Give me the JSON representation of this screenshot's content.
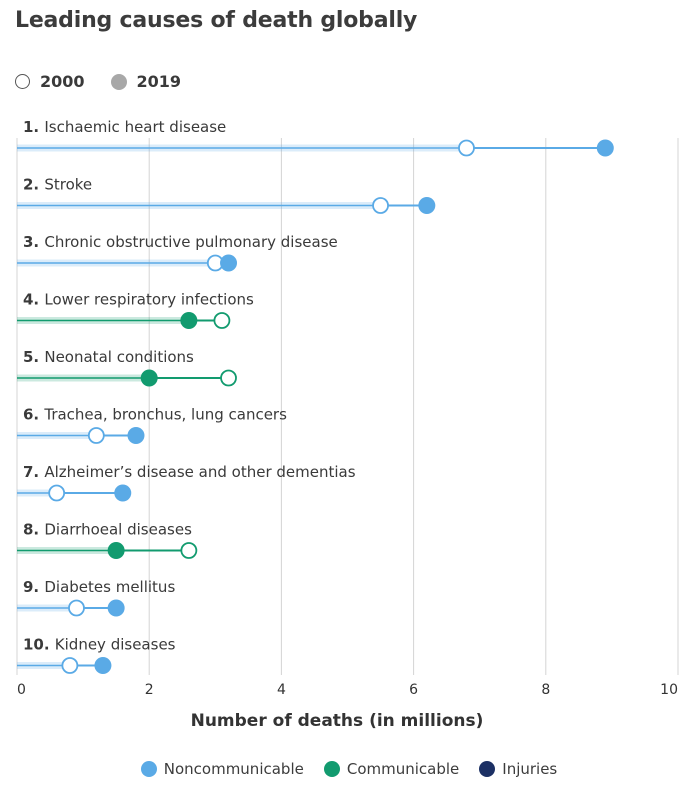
{
  "title": "Leading causes of death globally",
  "year_legend": {
    "y2000": "2000",
    "y2019": "2019"
  },
  "colors": {
    "noncommunicable": "#5aaae6",
    "communicable": "#129b6f",
    "injuries": "#1c3064",
    "grid": "#d4d4d4",
    "axis_text": "#333333"
  },
  "chart_data": {
    "type": "dumbbell",
    "title": "Leading causes of death globally",
    "xlabel": "Number of deaths (in millions)",
    "xlim": [
      0,
      10
    ],
    "xticks": [
      0,
      2,
      4,
      6,
      8,
      10
    ],
    "series_names": [
      "2000",
      "2019"
    ],
    "rows": [
      {
        "rank": "1.",
        "label": "Ischaemic heart disease",
        "category": "noncommunicable",
        "v2000": 6.8,
        "v2019": 8.9
      },
      {
        "rank": "2.",
        "label": "Stroke",
        "category": "noncommunicable",
        "v2000": 5.5,
        "v2019": 6.2
      },
      {
        "rank": "3.",
        "label": "Chronic obstructive pulmonary disease",
        "category": "noncommunicable",
        "v2000": 3.0,
        "v2019": 3.2
      },
      {
        "rank": "4.",
        "label": "Lower respiratory infections",
        "category": "communicable",
        "v2000": 3.1,
        "v2019": 2.6
      },
      {
        "rank": "5.",
        "label": "Neonatal conditions",
        "category": "communicable",
        "v2000": 3.2,
        "v2019": 2.0
      },
      {
        "rank": "6.",
        "label": "Trachea, bronchus, lung cancers",
        "category": "noncommunicable",
        "v2000": 1.2,
        "v2019": 1.8
      },
      {
        "rank": "7.",
        "label": "Alzheimer’s disease and other dementias",
        "category": "noncommunicable",
        "v2000": 0.6,
        "v2019": 1.6
      },
      {
        "rank": "8.",
        "label": "Diarrhoeal diseases",
        "category": "communicable",
        "v2000": 2.6,
        "v2019": 1.5
      },
      {
        "rank": "9.",
        "label": "Diabetes mellitus",
        "category": "noncommunicable",
        "v2000": 0.9,
        "v2019": 1.5
      },
      {
        "rank": "10.",
        "label": "Kidney diseases",
        "category": "noncommunicable",
        "v2000": 0.8,
        "v2019": 1.3
      }
    ],
    "legend": [
      {
        "key": "noncommunicable",
        "label": "Noncommunicable"
      },
      {
        "key": "communicable",
        "label": "Communicable"
      },
      {
        "key": "injuries",
        "label": "Injuries"
      }
    ]
  }
}
